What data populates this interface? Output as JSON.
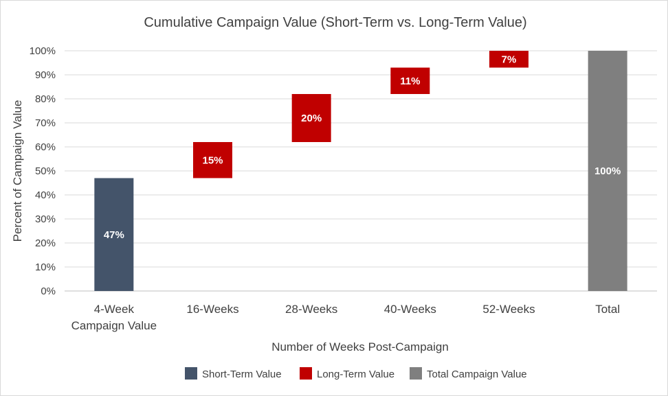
{
  "chart_data": {
    "type": "bar",
    "subtype": "waterfall",
    "title": "Cumulative Campaign Value (Short-Term vs. Long-Term Value)",
    "xlabel": "Number of Weeks Post-Campaign",
    "ylabel": "Percent of Campaign Value",
    "ylim": [
      0,
      100
    ],
    "yticks": [
      "0%",
      "10%",
      "20%",
      "30%",
      "40%",
      "50%",
      "60%",
      "70%",
      "80%",
      "90%",
      "100%"
    ],
    "grid": true,
    "legend_position": "bottom",
    "categories": [
      [
        "4-Week",
        "Campaign Value"
      ],
      [
        "16-Weeks"
      ],
      [
        "28-Weeks"
      ],
      [
        "40-Weeks"
      ],
      [
        "52-Weeks"
      ],
      [
        "Total"
      ]
    ],
    "bars": [
      {
        "base": 0,
        "value": 47,
        "label": "47%",
        "series": 0
      },
      {
        "base": 47,
        "value": 15,
        "label": "15%",
        "series": 1
      },
      {
        "base": 62,
        "value": 20,
        "label": "20%",
        "series": 1
      },
      {
        "base": 82,
        "value": 11,
        "label": "11%",
        "series": 1
      },
      {
        "base": 93,
        "value": 7,
        "label": "7%",
        "series": 1
      },
      {
        "base": 0,
        "value": 100,
        "label": "100%",
        "series": 2
      }
    ],
    "series": [
      {
        "name": "Short-Term Value",
        "color": "#44546a"
      },
      {
        "name": "Long-Term Value",
        "color": "#c00000"
      },
      {
        "name": "Total Campaign Value",
        "color": "#7f7f7f"
      }
    ]
  }
}
